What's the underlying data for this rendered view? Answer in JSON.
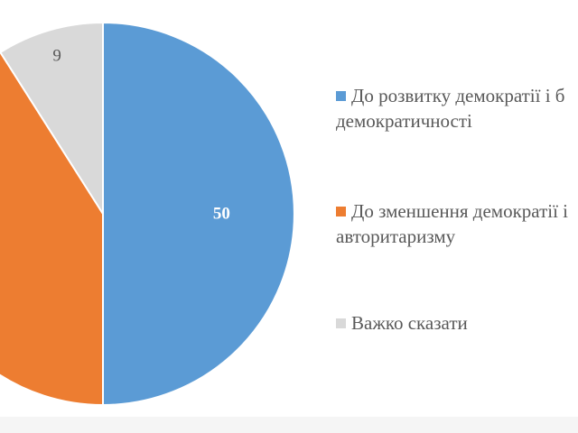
{
  "chart_data": {
    "type": "pie",
    "categories": [
      "До розвитку демократії і більшої демократичності",
      "До зменшення демократії і авторитаризму",
      "Важко сказати"
    ],
    "values": [
      50,
      41,
      9
    ],
    "data_labels": [
      "50",
      "",
      "9"
    ],
    "colors": [
      "#5b9bd5",
      "#ed7d31",
      "#d9d9d9"
    ],
    "data_label_colors": [
      "#ffffff",
      "#ffffff",
      "#595959"
    ],
    "legend_position": "right",
    "start_angle_deg": 0,
    "direction": "clockwise"
  },
  "legend": {
    "items": [
      {
        "lines": [
          "До розвитку демократії і б",
          "демократичності"
        ],
        "color": "#5b9bd5"
      },
      {
        "lines": [
          "До зменшення демократії і",
          "авторитаризму"
        ],
        "color": "#ed7d31"
      },
      {
        "lines": [
          "Важко сказати"
        ],
        "color": "#d9d9d9"
      }
    ]
  }
}
